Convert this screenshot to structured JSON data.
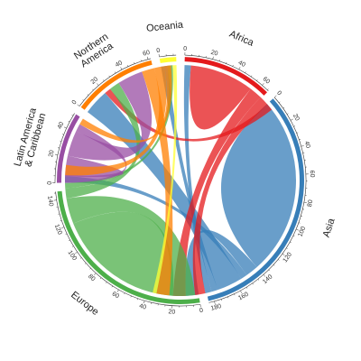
{
  "chart_data": {
    "type": "chord",
    "unit_hint": "flows (0–180 ticks)",
    "regions": [
      {
        "name": "Africa",
        "color": "#E41A1C",
        "total": 66
      },
      {
        "name": "Asia",
        "color": "#377EB8",
        "total": 184
      },
      {
        "name": "Europe",
        "color": "#4DAF4A",
        "total": 146
      },
      {
        "name": "Latin America & Caribbean",
        "color": "#984EA3",
        "total": 52
      },
      {
        "name": "Northern America",
        "color": "#FF7F00",
        "total": 62
      },
      {
        "name": "Oceania",
        "color": "#FFFF33",
        "total": 12
      }
    ],
    "ticks": {
      "Africa": [
        "0",
        "20",
        "40",
        "60"
      ],
      "Asia": [
        "0",
        "20",
        "40",
        "60",
        "80",
        "100",
        "120",
        "140",
        "160",
        "180"
      ],
      "Europe": [
        "0",
        "20",
        "40",
        "60",
        "80",
        "100",
        "120",
        "140"
      ],
      "Latin America & Caribbean": [
        "0",
        "20",
        "40"
      ],
      "Northern America": [
        "0",
        "20",
        "40",
        "60"
      ],
      "Oceania": [
        "0"
      ]
    },
    "flows": [
      {
        "from": "Asia",
        "to": "Asia",
        "value": 70
      },
      {
        "from": "Asia",
        "to": "Europe",
        "value": 10
      },
      {
        "from": "Asia",
        "to": "Latin America & Caribbean",
        "value": 5
      },
      {
        "from": "Asia",
        "to": "Northern America",
        "value": 20
      },
      {
        "from": "Asia",
        "to": "Oceania",
        "value": 5
      },
      {
        "from": "Asia",
        "to": "Africa",
        "value": 5
      },
      {
        "from": "Africa",
        "to": "Africa",
        "value": 25
      },
      {
        "from": "Africa",
        "to": "Europe",
        "value": 10
      },
      {
        "from": "Africa",
        "to": "Asia",
        "value": 8
      },
      {
        "from": "Africa",
        "to": "Northern America",
        "value": 5
      },
      {
        "from": "Europe",
        "to": "Europe",
        "value": 50
      },
      {
        "from": "Europe",
        "to": "Asia",
        "value": 20
      },
      {
        "from": "Europe",
        "to": "Northern America",
        "value": 8
      },
      {
        "from": "Europe",
        "to": "Oceania",
        "value": 4
      },
      {
        "from": "Latin America & Caribbean",
        "to": "Latin America & Caribbean",
        "value": 8
      },
      {
        "from": "Latin America & Caribbean",
        "to": "Northern America",
        "value": 20
      },
      {
        "from": "Latin America & Caribbean",
        "to": "Europe",
        "value": 6
      },
      {
        "from": "Northern America",
        "to": "Asia",
        "value": 10
      },
      {
        "from": "Northern America",
        "to": "Europe",
        "value": 8
      },
      {
        "from": "Northern America",
        "to": "Latin America & Caribbean",
        "value": 5
      },
      {
        "from": "Oceania",
        "to": "Asia",
        "value": 3
      }
    ]
  }
}
